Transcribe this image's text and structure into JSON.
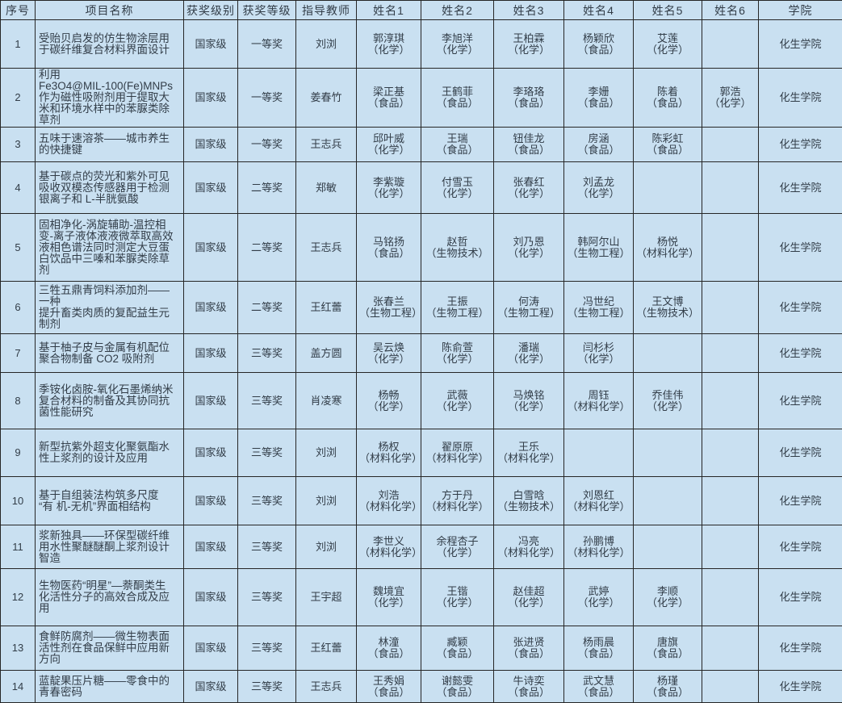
{
  "colors": {
    "cell_background": "#c9e0f1",
    "grid_border": "#262626",
    "text": "#323d48"
  },
  "table": {
    "columns": [
      {
        "key": "no",
        "label": "序号"
      },
      {
        "key": "project",
        "label": "项目名称"
      },
      {
        "key": "level",
        "label": "获奖级别"
      },
      {
        "key": "grade",
        "label": "获奖等级"
      },
      {
        "key": "teacher",
        "label": "指导教师"
      },
      {
        "key": "name1",
        "label": "姓名1"
      },
      {
        "key": "name2",
        "label": "姓名2"
      },
      {
        "key": "name3",
        "label": "姓名3"
      },
      {
        "key": "name4",
        "label": "姓名4"
      },
      {
        "key": "name5",
        "label": "姓名5"
      },
      {
        "key": "name6",
        "label": "姓名6"
      },
      {
        "key": "college",
        "label": "学院"
      }
    ],
    "rows": [
      {
        "no": "1",
        "project": "受贻贝启发的仿生物涂层用于碳纤维复合材料界面设计",
        "level": "国家级",
        "grade": "一等奖",
        "teacher": "刘浏",
        "names": [
          "郭淳琪\n（化学）",
          "李旭洋\n（化学）",
          "王柏霖\n（化学）",
          "杨颖欣\n（食品）",
          "艾莲\n（化学）",
          ""
        ],
        "college": "化生学院"
      },
      {
        "no": "2",
        "project": "利用\nFe3O4@MIL-100(Fe)MNPs\n作为磁性吸附剂用于提取大米和环境水样中的苯脲类除草剂",
        "level": "国家级",
        "grade": "一等奖",
        "teacher": "姜春竹",
        "names": [
          "梁正基\n（食品）",
          "王鹤菲\n（食品）",
          "李珞珞\n（食品）",
          "李姗\n（食品）",
          "陈着\n（食品）",
          "郭浩\n（化学）"
        ],
        "college": "化生学院"
      },
      {
        "no": "3",
        "project": "五味于速溶茶——城市养生的快捷键",
        "level": "国家级",
        "grade": "一等奖",
        "teacher": "王志兵",
        "names": [
          "邱叶威\n（化学）",
          "王瑞\n（食品）",
          "钮佳龙\n（食品）",
          "房涵\n（食品）",
          "陈彩虹\n（食品）",
          ""
        ],
        "college": "化生学院"
      },
      {
        "no": "4",
        "project": "基于碳点的荧光和紫外可见吸收双模态传感器用于检测银离子和 L-半胱氨酸",
        "level": "国家级",
        "grade": "二等奖",
        "teacher": "郑敏",
        "names": [
          "李紫璇\n（化学）",
          "付雪玉\n（化学）",
          "张春红\n（化学）",
          "刘孟龙\n（化学）",
          "",
          ""
        ],
        "college": "化生学院"
      },
      {
        "no": "5",
        "project": "固相净化-涡旋辅助-温控相变-离子液体液液微萃取高效\n液相色谱法同时测定大豆蛋白饮品中三嗪和苯脲类除草剂",
        "level": "国家级",
        "grade": "二等奖",
        "teacher": "王志兵",
        "names": [
          "马铭扬\n（食品）",
          "赵哲\n（生物技术）",
          "刘乃恩\n（化学）",
          "韩阿尔山\n（生物工程）",
          "杨悦\n（材料化学）",
          ""
        ],
        "college": "化生学院"
      },
      {
        "no": "6",
        "project": "三牲五鼎青饲料添加剂——一种\n提升畜类肉质的复配益生元制剂",
        "level": "国家级",
        "grade": "二等奖",
        "teacher": "王红蕾",
        "names": [
          "张春兰\n（生物工程）",
          "王振\n（生物工程）",
          "何涛\n（生物工程）",
          "冯世纪\n（生物工程）",
          "王文博\n（生物技术）",
          ""
        ],
        "college": "化生学院"
      },
      {
        "no": "7",
        "project": "基于柚子皮与金属有机配位聚合物制备 CO2 吸附剂",
        "level": "国家级",
        "grade": "三等奖",
        "teacher": "盖方圆",
        "names": [
          "吴云焕\n（化学）",
          "陈俞萱\n（化学）",
          "潘瑞\n（化学）",
          "闫杉杉\n（化学）",
          "",
          ""
        ],
        "college": "化生学院"
      },
      {
        "no": "8",
        "project": "季铵化卤胺-氧化石墨烯纳米\n复合材料的制备及其协同抗菌性能研究",
        "level": "国家级",
        "grade": "三等奖",
        "teacher": "肖凌寒",
        "names": [
          "杨畅\n（化学）",
          "武薇\n（化学）",
          "马焕铭\n（化学）",
          "周钰\n（材料化学）",
          "乔佳伟\n（化学）",
          ""
        ],
        "college": "化生学院"
      },
      {
        "no": "9",
        "project": "新型抗紫外超支化聚氨酯水性上浆剂的设计及应用",
        "level": "国家级",
        "grade": "三等奖",
        "teacher": "刘浏",
        "names": [
          "杨权\n（材料化学）",
          "翟原原\n（材料化学）",
          "王乐\n（材料化学）",
          "",
          "",
          ""
        ],
        "college": "化生学院"
      },
      {
        "no": "10",
        "project": "基于自组装法构筑多尺度\n“有 机-无机”界面相结构",
        "level": "国家级",
        "grade": "三等奖",
        "teacher": "刘浏",
        "names": [
          "刘浩\n（材料化学）",
          "方于丹\n（材料化学）",
          "白雪晗\n（生物技术）",
          "刘恩红\n（材料化学）",
          "",
          ""
        ],
        "college": "化生学院"
      },
      {
        "no": "11",
        "project": "浆新独具——环保型碳纤维用水性聚醚醚酮上浆剂设计智造",
        "level": "国家级",
        "grade": "三等奖",
        "teacher": "刘浏",
        "names": [
          "李世义\n（材料化学）",
          "余程杏子\n（化学）",
          "冯亮\n（材料化学）",
          "孙鹏博\n（材料化学）",
          "",
          ""
        ],
        "college": "化生学院"
      },
      {
        "no": "12",
        "project": "生物医药“明星”—萘酮类生\n化活性分子的高效合成及应用",
        "level": "国家级",
        "grade": "三等奖",
        "teacher": "王宇超",
        "names": [
          "魏境宜\n（化学）",
          "王锴\n（化学）",
          "赵佳超\n（化学）",
          "武婷\n（化学）",
          "李顺\n（化学）",
          ""
        ],
        "college": "化生学院"
      },
      {
        "no": "13",
        "project": "食鲜防腐剂——微生物表面活性剂在食品保鲜中应用新方向",
        "level": "国家级",
        "grade": "三等奖",
        "teacher": "王红蕾",
        "names": [
          "林潼\n（食品）",
          "臧颖\n（食品）",
          "张进贤\n（食品）",
          "杨雨晨\n（食品）",
          "唐旗\n（食品）",
          ""
        ],
        "college": "化生学院"
      },
      {
        "no": "14",
        "project": "蓝靛果压片糖——零食中的青春密码",
        "level": "国家级",
        "grade": "三等奖",
        "teacher": "王志兵",
        "names": [
          "王秀娟\n（食品）",
          "谢懿雯\n（食品）",
          "牛诗奕\n（食品）",
          "武文慧\n（食品）",
          "杨瑾\n（食品）",
          ""
        ],
        "college": "化生学院"
      }
    ]
  }
}
